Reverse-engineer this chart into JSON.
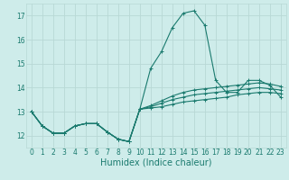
{
  "xlabel": "Humidex (Indice chaleur)",
  "background_color": "#ceecea",
  "grid_color": "#b8d8d5",
  "line_color": "#1a7a6e",
  "xlim": [
    -0.5,
    23.5
  ],
  "ylim": [
    11.5,
    17.5
  ],
  "yticks": [
    12,
    13,
    14,
    15,
    16,
    17
  ],
  "xticks": [
    0,
    1,
    2,
    3,
    4,
    5,
    6,
    7,
    8,
    9,
    10,
    11,
    12,
    13,
    14,
    15,
    16,
    17,
    18,
    19,
    20,
    21,
    22,
    23
  ],
  "series": [
    [
      13.0,
      12.4,
      12.1,
      12.1,
      12.4,
      12.5,
      12.5,
      12.15,
      11.85,
      11.75,
      13.1,
      14.8,
      15.5,
      16.5,
      17.1,
      17.2,
      16.6,
      14.3,
      13.8,
      13.8,
      14.3,
      14.3,
      14.1,
      13.6
    ],
    [
      13.0,
      12.4,
      12.1,
      12.1,
      12.4,
      12.5,
      12.5,
      12.15,
      11.85,
      11.75,
      13.1,
      13.15,
      13.2,
      13.3,
      13.4,
      13.45,
      13.5,
      13.55,
      13.6,
      13.7,
      13.75,
      13.8,
      13.8,
      13.75
    ],
    [
      13.0,
      12.4,
      12.1,
      12.1,
      12.4,
      12.5,
      12.5,
      12.15,
      11.85,
      11.75,
      13.1,
      13.2,
      13.35,
      13.5,
      13.6,
      13.7,
      13.75,
      13.8,
      13.85,
      13.9,
      13.95,
      14.0,
      13.95,
      13.9
    ],
    [
      13.0,
      12.4,
      12.1,
      12.1,
      12.4,
      12.5,
      12.5,
      12.15,
      11.85,
      11.75,
      13.1,
      13.25,
      13.45,
      13.65,
      13.8,
      13.9,
      13.95,
      14.0,
      14.05,
      14.1,
      14.15,
      14.2,
      14.15,
      14.05
    ]
  ],
  "xlabel_fontsize": 7,
  "tick_fontsize": 5.5,
  "linewidth": 0.8,
  "markersize": 2.5
}
